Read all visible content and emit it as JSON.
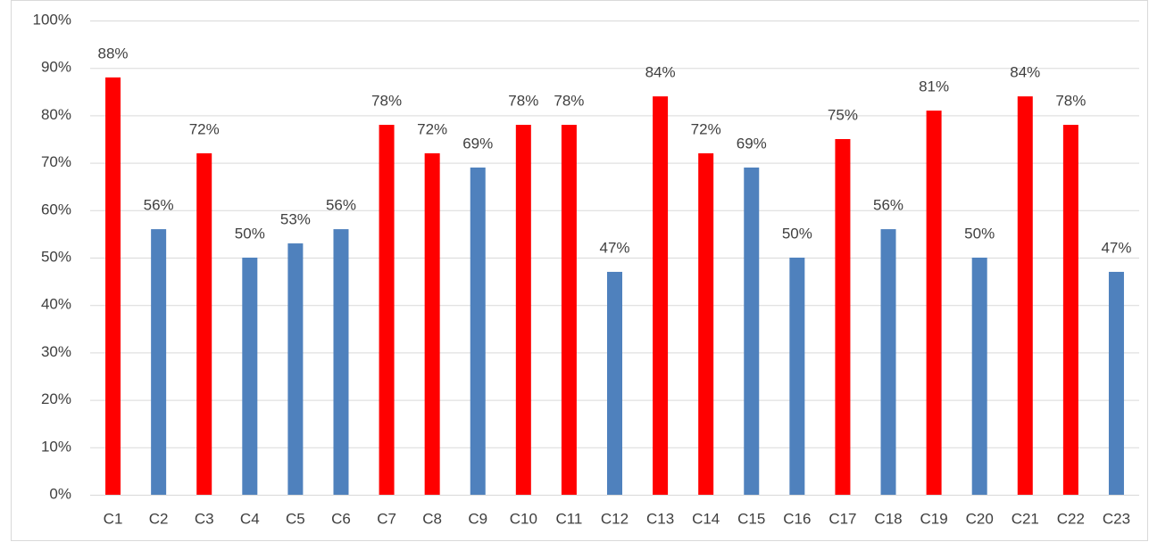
{
  "chart_data": {
    "type": "bar",
    "categories": [
      "C1",
      "C2",
      "C3",
      "C4",
      "C5",
      "C6",
      "C7",
      "C8",
      "C9",
      "C10",
      "C11",
      "C12",
      "C13",
      "C14",
      "C15",
      "C16",
      "C17",
      "C18",
      "C19",
      "C20",
      "C21",
      "C22",
      "C23"
    ],
    "values": [
      88,
      56,
      72,
      50,
      53,
      56,
      78,
      72,
      69,
      78,
      78,
      47,
      84,
      72,
      69,
      50,
      75,
      56,
      81,
      50,
      84,
      78,
      47
    ],
    "value_labels": [
      "88%",
      "56%",
      "72%",
      "50%",
      "53%",
      "56%",
      "78%",
      "72%",
      "69%",
      "78%",
      "78%",
      "47%",
      "84%",
      "72%",
      "69%",
      "50%",
      "75%",
      "56%",
      "81%",
      "50%",
      "84%",
      "78%",
      "47%"
    ],
    "colors": [
      "#ff0000",
      "#4f81bd",
      "#ff0000",
      "#4f81bd",
      "#4f81bd",
      "#4f81bd",
      "#ff0000",
      "#ff0000",
      "#4f81bd",
      "#ff0000",
      "#ff0000",
      "#4f81bd",
      "#ff0000",
      "#ff0000",
      "#4f81bd",
      "#4f81bd",
      "#ff0000",
      "#4f81bd",
      "#ff0000",
      "#4f81bd",
      "#ff0000",
      "#ff0000",
      "#4f81bd"
    ],
    "ylim": [
      0,
      100
    ],
    "yticks": [
      {
        "value": 0,
        "label": "0%"
      },
      {
        "value": 10,
        "label": "10%"
      },
      {
        "value": 20,
        "label": "20%"
      },
      {
        "value": 30,
        "label": "30%"
      },
      {
        "value": 40,
        "label": "40%"
      },
      {
        "value": 50,
        "label": "50%"
      },
      {
        "value": 60,
        "label": "60%"
      },
      {
        "value": 70,
        "label": "70%"
      },
      {
        "value": 80,
        "label": "80%"
      },
      {
        "value": 90,
        "label": "90%"
      },
      {
        "value": 100,
        "label": "100%"
      }
    ],
    "grid": true
  }
}
